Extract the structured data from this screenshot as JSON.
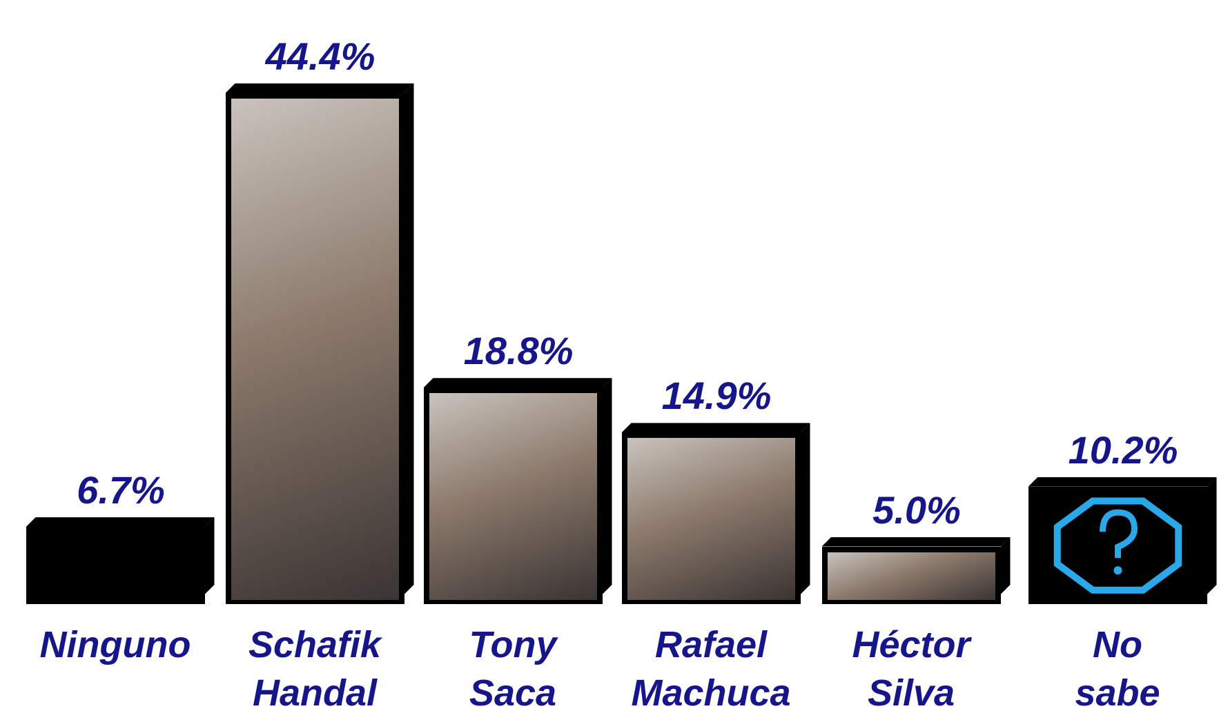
{
  "chart_data": {
    "type": "bar",
    "categories": [
      "Ninguno",
      "Schafik Handal",
      "Tony Saca",
      "Rafael Machuca",
      "Héctor Silva",
      "No sabe"
    ],
    "values": [
      6.7,
      44.4,
      18.8,
      14.9,
      5.0,
      10.2
    ],
    "value_labels": [
      "6.7%",
      "44.4%",
      "18.8%",
      "14.9%",
      "5.0%",
      "10.2%"
    ],
    "color": "#000000",
    "label_color": "#16168a"
  }
}
